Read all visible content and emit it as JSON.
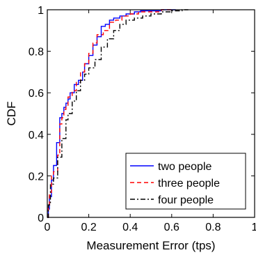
{
  "chart_data": {
    "type": "line",
    "title": "",
    "xlabel": "Measurement Error (tps)",
    "ylabel": "CDF",
    "xlim": [
      0,
      1
    ],
    "ylim": [
      0,
      1
    ],
    "x_ticks": [
      "0",
      "0.2",
      "0.4",
      "0.6",
      "0.8",
      "1"
    ],
    "y_ticks": [
      "0",
      "0.2",
      "0.4",
      "0.6",
      "0.8",
      "1"
    ],
    "grid": false,
    "legend_position": "bottom-right",
    "series": [
      {
        "name": "two people",
        "color": "#0000ff",
        "dash": "solid",
        "x": [
          0.0,
          0.005,
          0.01,
          0.02,
          0.03,
          0.045,
          0.06,
          0.07,
          0.08,
          0.09,
          0.1,
          0.11,
          0.13,
          0.15,
          0.17,
          0.18,
          0.2,
          0.22,
          0.24,
          0.26,
          0.28,
          0.3,
          0.32,
          0.35,
          0.38,
          0.4,
          0.42,
          0.45,
          0.5,
          0.55,
          0.6,
          0.62
        ],
        "y": [
          0.0,
          0.04,
          0.1,
          0.18,
          0.25,
          0.36,
          0.48,
          0.5,
          0.53,
          0.55,
          0.57,
          0.6,
          0.64,
          0.66,
          0.7,
          0.74,
          0.78,
          0.83,
          0.87,
          0.92,
          0.93,
          0.95,
          0.96,
          0.97,
          0.98,
          0.98,
          0.99,
          0.995,
          0.995,
          1.0,
          1.0,
          1.0
        ]
      },
      {
        "name": "three people",
        "color": "#ff0000",
        "dash": "dashed",
        "x": [
          0.0,
          0.005,
          0.01,
          0.02,
          0.03,
          0.05,
          0.06,
          0.07,
          0.08,
          0.09,
          0.1,
          0.12,
          0.14,
          0.16,
          0.18,
          0.2,
          0.22,
          0.24,
          0.27,
          0.3,
          0.33,
          0.36,
          0.4,
          0.44,
          0.5,
          0.55,
          0.6
        ],
        "y": [
          0.0,
          0.05,
          0.12,
          0.2,
          0.22,
          0.3,
          0.45,
          0.48,
          0.52,
          0.54,
          0.58,
          0.61,
          0.65,
          0.7,
          0.74,
          0.79,
          0.84,
          0.88,
          0.9,
          0.94,
          0.95,
          0.97,
          0.98,
          0.99,
          0.99,
          1.0,
          1.0
        ]
      },
      {
        "name": "four people",
        "color": "#000000",
        "dash": "dashdot",
        "x": [
          0.0,
          0.005,
          0.015,
          0.03,
          0.05,
          0.07,
          0.09,
          0.1,
          0.12,
          0.14,
          0.16,
          0.18,
          0.2,
          0.23,
          0.26,
          0.29,
          0.32,
          0.35,
          0.38,
          0.42,
          0.46,
          0.5,
          0.55,
          0.6,
          0.65,
          0.68
        ],
        "y": [
          0.0,
          0.06,
          0.16,
          0.19,
          0.29,
          0.38,
          0.47,
          0.5,
          0.56,
          0.61,
          0.66,
          0.69,
          0.72,
          0.76,
          0.82,
          0.86,
          0.9,
          0.93,
          0.95,
          0.96,
          0.97,
          0.98,
          0.99,
          0.995,
          1.0,
          1.0
        ]
      }
    ]
  }
}
